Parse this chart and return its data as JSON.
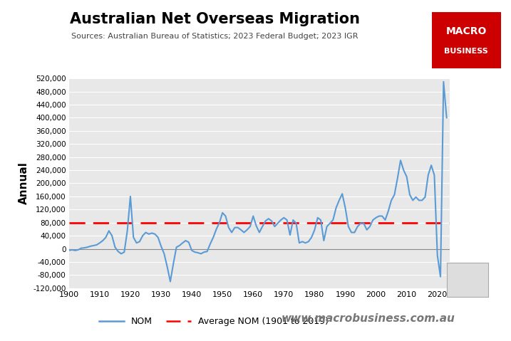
{
  "title": "Australian Net Overseas Migration",
  "subtitle": "Sources: Australian Bureau of Statistics; 2023 Federal Budget; 2023 IGR",
  "ylabel": "Annual",
  "plot_background": "#e8e8e8",
  "line_color": "#5b9bd5",
  "avg_line_color": "#ff0000",
  "avg_value": 80000,
  "website": "www.macrobusiness.com.au",
  "years": [
    1900,
    1901,
    1902,
    1903,
    1904,
    1905,
    1906,
    1907,
    1908,
    1909,
    1910,
    1911,
    1912,
    1913,
    1914,
    1915,
    1916,
    1917,
    1918,
    1919,
    1920,
    1921,
    1922,
    1923,
    1924,
    1925,
    1926,
    1927,
    1928,
    1929,
    1930,
    1931,
    1932,
    1933,
    1934,
    1935,
    1936,
    1937,
    1938,
    1939,
    1940,
    1941,
    1942,
    1943,
    1944,
    1945,
    1946,
    1947,
    1948,
    1949,
    1950,
    1951,
    1952,
    1953,
    1954,
    1955,
    1956,
    1957,
    1958,
    1959,
    1960,
    1961,
    1962,
    1963,
    1964,
    1965,
    1966,
    1967,
    1968,
    1969,
    1970,
    1971,
    1972,
    1973,
    1974,
    1975,
    1976,
    1977,
    1978,
    1979,
    1980,
    1981,
    1982,
    1983,
    1984,
    1985,
    1986,
    1987,
    1988,
    1989,
    1990,
    1991,
    1992,
    1993,
    1994,
    1995,
    1996,
    1997,
    1998,
    1999,
    2000,
    2001,
    2002,
    2003,
    2004,
    2005,
    2006,
    2007,
    2008,
    2009,
    2010,
    2011,
    2012,
    2013,
    2014,
    2015,
    2016,
    2017,
    2018,
    2019,
    2020,
    2021,
    2022,
    2023
  ],
  "values": [
    -5000,
    -3000,
    -5000,
    -3000,
    2000,
    3000,
    5000,
    8000,
    10000,
    12000,
    18000,
    25000,
    35000,
    55000,
    40000,
    5000,
    -8000,
    -15000,
    -10000,
    55000,
    160000,
    35000,
    18000,
    22000,
    40000,
    50000,
    45000,
    48000,
    45000,
    35000,
    8000,
    -15000,
    -55000,
    -100000,
    -45000,
    5000,
    10000,
    18000,
    25000,
    20000,
    -5000,
    -10000,
    -12000,
    -15000,
    -10000,
    -8000,
    15000,
    35000,
    60000,
    80000,
    110000,
    100000,
    65000,
    50000,
    65000,
    65000,
    58000,
    50000,
    58000,
    68000,
    100000,
    70000,
    50000,
    68000,
    85000,
    92000,
    85000,
    68000,
    78000,
    88000,
    95000,
    88000,
    42000,
    88000,
    78000,
    18000,
    22000,
    18000,
    22000,
    35000,
    58000,
    95000,
    88000,
    25000,
    68000,
    78000,
    88000,
    125000,
    148000,
    168000,
    125000,
    68000,
    50000,
    50000,
    68000,
    78000,
    78000,
    58000,
    68000,
    88000,
    95000,
    100000,
    100000,
    88000,
    115000,
    148000,
    165000,
    215000,
    270000,
    240000,
    220000,
    165000,
    148000,
    158000,
    148000,
    148000,
    158000,
    225000,
    255000,
    225000,
    -20000,
    -85000,
    510000,
    400000
  ]
}
